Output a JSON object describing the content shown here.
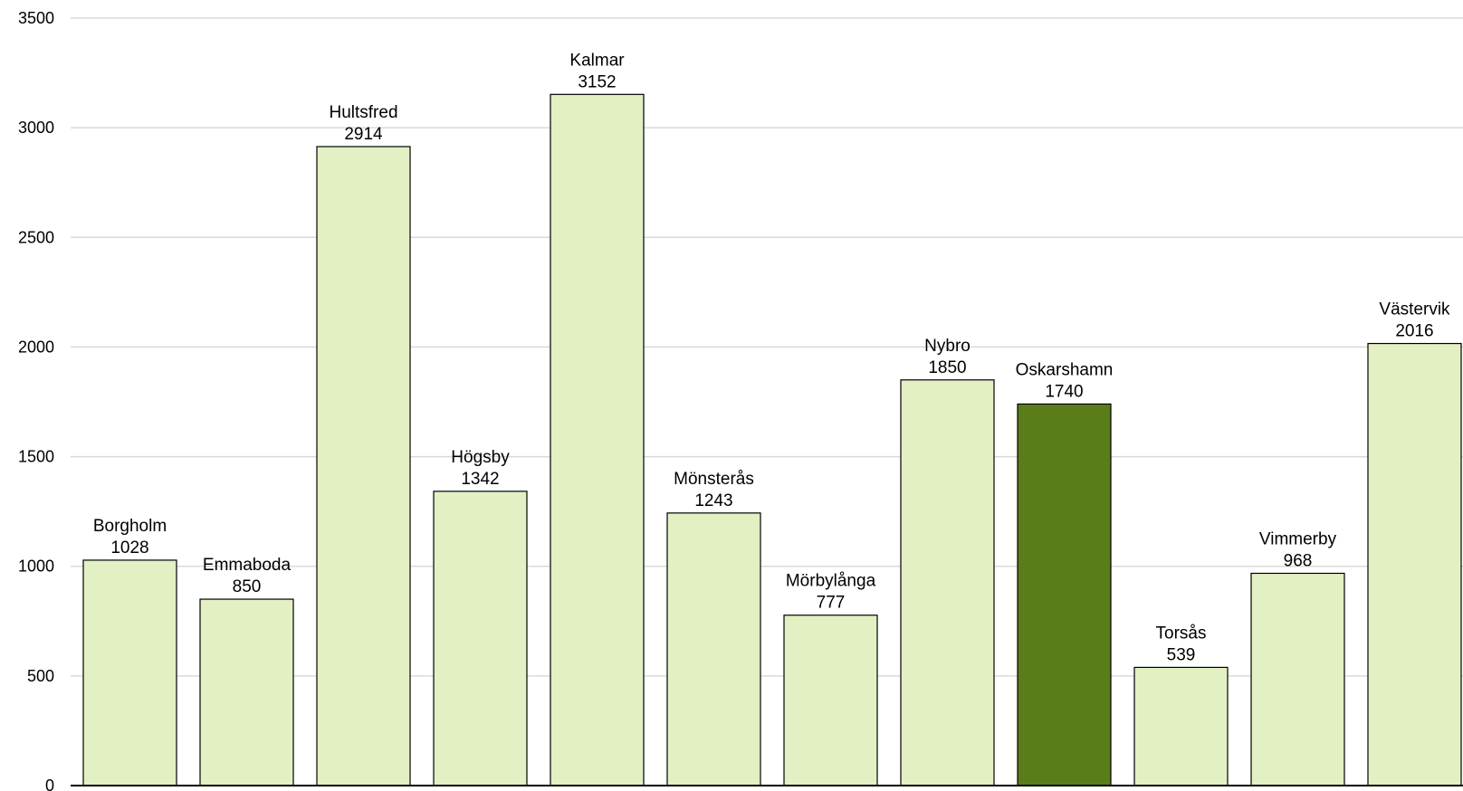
{
  "chart_data": {
    "type": "bar",
    "categories": [
      "Borgholm",
      "Emmaboda",
      "Hultsfred",
      "Högsby",
      "Kalmar",
      "Mönsterås",
      "Mörbylånga",
      "Nybro",
      "Oskarshamn",
      "Torsås",
      "Vimmerby",
      "Västervik"
    ],
    "values": [
      1028,
      850,
      2914,
      1342,
      3152,
      1243,
      777,
      1850,
      1740,
      539,
      968,
      2016
    ],
    "highlight": "Oskarshamn",
    "title": "",
    "xlabel": "",
    "ylabel": "",
    "ylim": [
      0,
      3500
    ],
    "yticks": [
      0,
      500,
      1000,
      1500,
      2000,
      2500,
      3000,
      3500
    ],
    "grid": true,
    "legend": "none",
    "colors": {
      "bar": "#e2f0c3",
      "highlight": "#5a7d1a",
      "grid": "#d9d9d9",
      "axis": "#000000"
    }
  }
}
